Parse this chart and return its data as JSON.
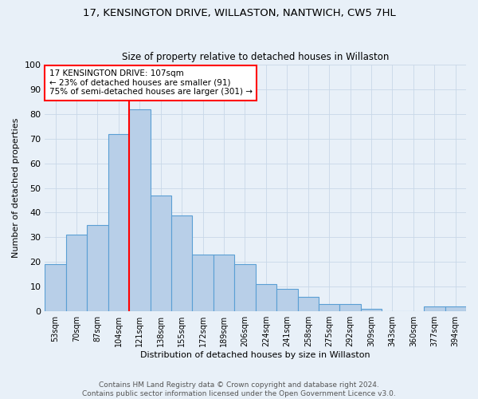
{
  "title": "17, KENSINGTON DRIVE, WILLASTON, NANTWICH, CW5 7HL",
  "subtitle": "Size of property relative to detached houses in Willaston",
  "xlabel": "Distribution of detached houses by size in Willaston",
  "ylabel": "Number of detached properties",
  "categories": [
    "53sqm",
    "70sqm",
    "87sqm",
    "104sqm",
    "121sqm",
    "138sqm",
    "155sqm",
    "172sqm",
    "189sqm",
    "206sqm",
    "224sqm",
    "241sqm",
    "258sqm",
    "275sqm",
    "292sqm",
    "309sqm",
    "343sqm",
    "360sqm",
    "377sqm",
    "394sqm"
  ],
  "values": [
    19,
    31,
    35,
    72,
    82,
    47,
    39,
    23,
    23,
    19,
    11,
    9,
    6,
    3,
    3,
    1,
    0,
    0,
    2,
    2
  ],
  "bar_color": "#b8cfe8",
  "bar_edge_color": "#5a9fd4",
  "bar_edge_width": 0.8,
  "vline_x": 3.5,
  "vline_color": "red",
  "vline_linewidth": 1.5,
  "annotation_text": "17 KENSINGTON DRIVE: 107sqm\n← 23% of detached houses are smaller (91)\n75% of semi-detached houses are larger (301) →",
  "annotation_box_color": "white",
  "annotation_box_edgecolor": "red",
  "annotation_fontsize": 7.5,
  "ylim": [
    0,
    100
  ],
  "yticks": [
    0,
    10,
    20,
    30,
    40,
    50,
    60,
    70,
    80,
    90,
    100
  ],
  "grid_color": "#c8d8e8",
  "background_color": "#e8f0f8",
  "footer_text": "Contains HM Land Registry data © Crown copyright and database right 2024.\nContains public sector information licensed under the Open Government Licence v3.0.",
  "title_fontsize": 9.5,
  "subtitle_fontsize": 8.5,
  "xlabel_fontsize": 8,
  "ylabel_fontsize": 8,
  "footer_fontsize": 6.5
}
